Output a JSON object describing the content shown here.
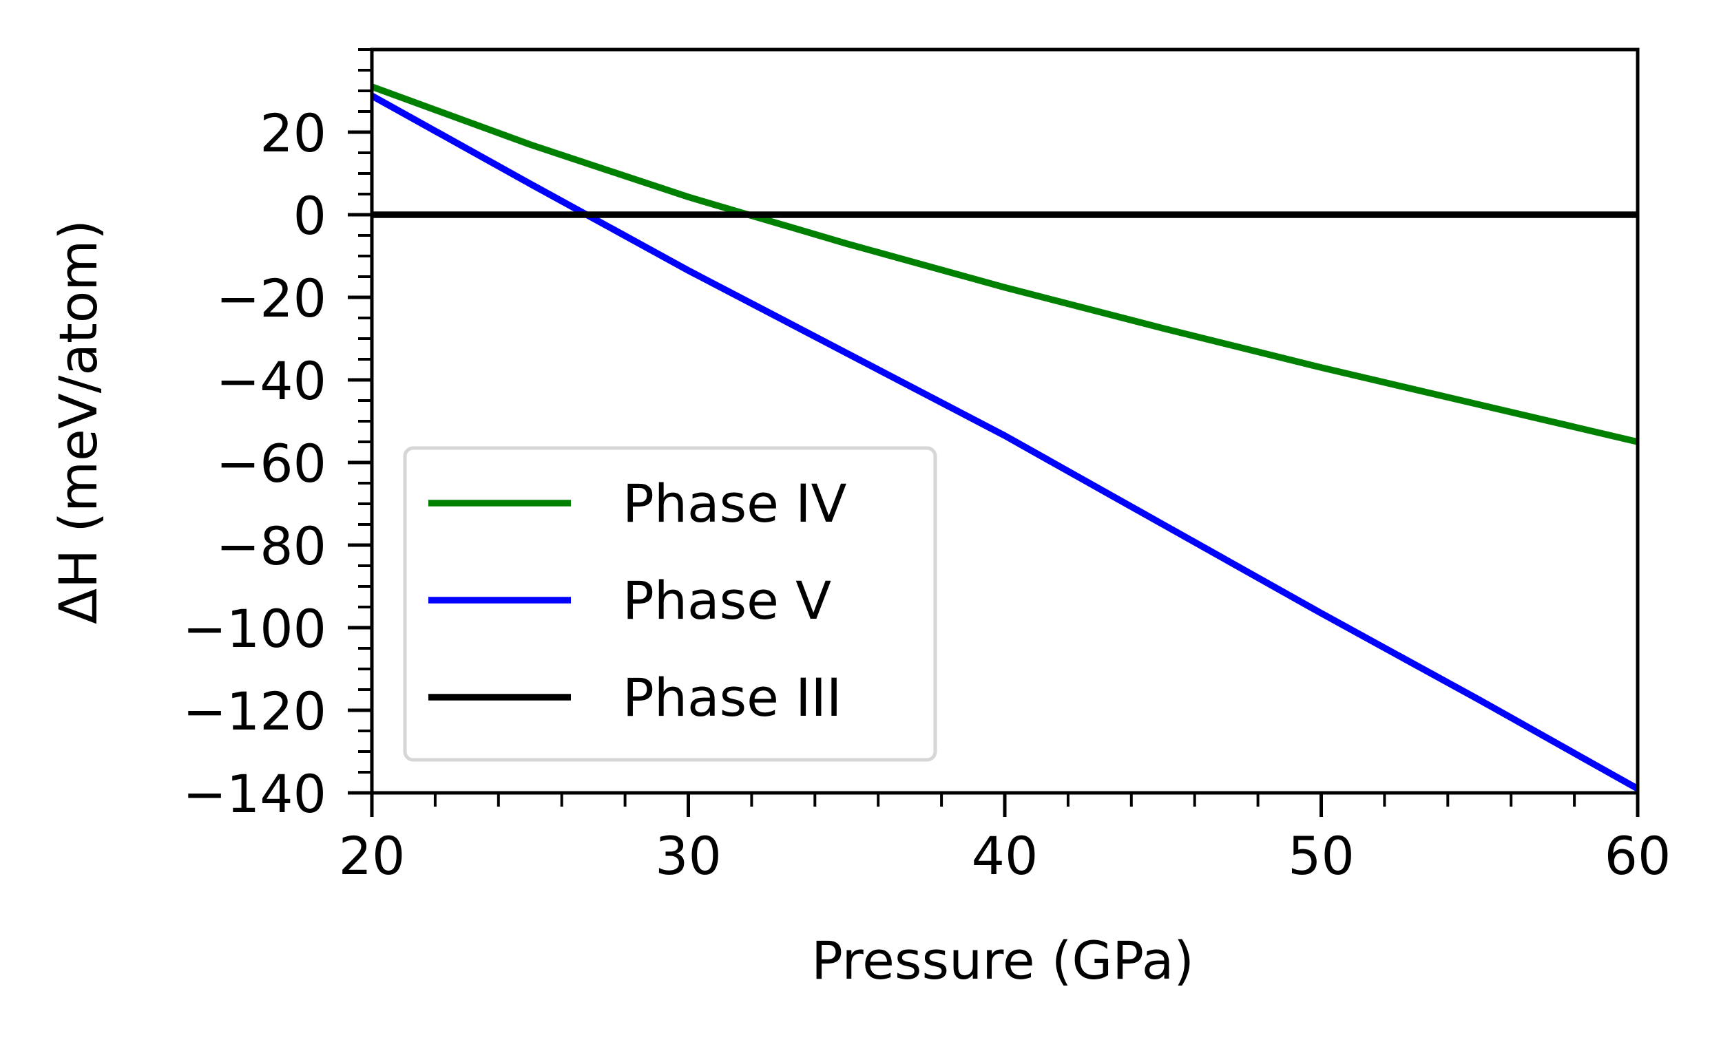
{
  "chart_data": {
    "type": "line",
    "title": "",
    "xlabel": "Pressure (GPa)",
    "ylabel": "ΔH (meV/atom)",
    "xlim": [
      20,
      60
    ],
    "ylim": [
      -140,
      40
    ],
    "xticks": [
      20,
      30,
      40,
      50,
      60
    ],
    "xtick_labels": [
      "20",
      "30",
      "40",
      "50",
      "60"
    ],
    "yticks": [
      -140,
      -120,
      -100,
      -80,
      -60,
      -40,
      -20,
      0,
      20
    ],
    "ytick_labels": [
      "−140",
      "−120",
      "−100",
      "−80",
      "−60",
      "−40",
      "−20",
      "0",
      "20"
    ],
    "x_minor_step": 2,
    "y_minor_step": 5,
    "grid": false,
    "legend_position": "lower-left",
    "series": [
      {
        "name": "Phase IV",
        "color": "#008000",
        "x": [
          20,
          25,
          30,
          35,
          40,
          45,
          50,
          55,
          60
        ],
        "y": [
          31,
          17,
          4.3,
          -7,
          -17.6,
          -27.5,
          -37,
          -46,
          -55
        ]
      },
      {
        "name": "Phase V",
        "color": "#0000ff",
        "x": [
          20,
          25,
          30,
          35,
          40,
          45,
          50,
          55,
          60
        ],
        "y": [
          28.8,
          7.5,
          -13.5,
          -33.5,
          -53.5,
          -75,
          -96.5,
          -117.5,
          -139
        ]
      },
      {
        "name": "Phase III",
        "color": "#000000",
        "x": [
          20,
          60
        ],
        "y": [
          0,
          0
        ]
      }
    ]
  }
}
